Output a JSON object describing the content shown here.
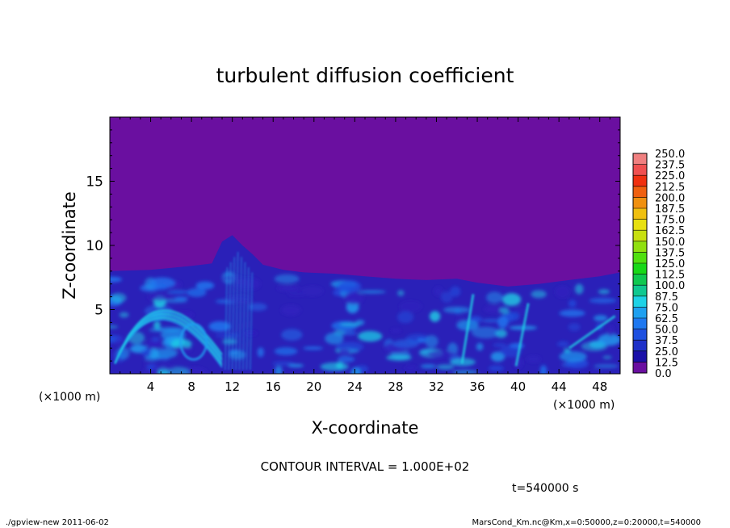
{
  "chart_data": {
    "type": "heatmap",
    "title": "turbulent diffusion coefficient",
    "xlabel": "X-coordinate",
    "ylabel": "Z-coordinate",
    "x_unit": "(×1000 m)",
    "y_unit": "(×1000 m)",
    "xlim": [
      0,
      50
    ],
    "ylim": [
      0,
      20
    ],
    "x_ticks": [
      4,
      8,
      12,
      16,
      20,
      24,
      28,
      32,
      36,
      40,
      44,
      48
    ],
    "y_ticks": [
      5,
      10,
      15
    ],
    "colorbar": {
      "levels": [
        "0.0",
        "12.5",
        "25.0",
        "37.5",
        "50.0",
        "62.5",
        "75.0",
        "87.5",
        "100.0",
        "112.5",
        "125.0",
        "137.5",
        "150.0",
        "162.5",
        "175.0",
        "187.5",
        "200.0",
        "212.5",
        "225.0",
        "237.5",
        "250.0"
      ],
      "colors": [
        "#6a0fa0",
        "#1a10a8",
        "#1e30c8",
        "#1e50e0",
        "#1e78f0",
        "#1ea0f0",
        "#1ed2e6",
        "#10c890",
        "#10c850",
        "#18d818",
        "#50e010",
        "#90e010",
        "#c8e010",
        "#e8e010",
        "#f0c010",
        "#f09010",
        "#f06010",
        "#f03010",
        "#f05050",
        "#f08080"
      ]
    },
    "contour_interval": "CONTOUR INTERVAL = 1.000E+02",
    "time": "t=540000 s",
    "boundary_layer_top": [
      [
        0,
        8.0
      ],
      [
        4,
        8.1
      ],
      [
        8,
        8.4
      ],
      [
        10,
        8.6
      ],
      [
        11,
        10.3
      ],
      [
        12,
        10.8
      ],
      [
        13,
        10.0
      ],
      [
        14,
        9.3
      ],
      [
        15,
        8.5
      ],
      [
        17,
        8.1
      ],
      [
        19,
        7.9
      ],
      [
        22,
        7.8
      ],
      [
        25,
        7.6
      ],
      [
        28,
        7.4
      ],
      [
        31,
        7.3
      ],
      [
        34,
        7.4
      ],
      [
        36,
        7.1
      ],
      [
        39,
        6.8
      ],
      [
        42,
        7.0
      ],
      [
        45,
        7.3
      ],
      [
        48,
        7.6
      ],
      [
        50,
        7.9
      ]
    ]
  },
  "footer": {
    "left": "./gpview-new   2011-06-02",
    "right": "MarsCond_Km.nc@Km,x=0:50000,z=0:20000,t=540000"
  }
}
